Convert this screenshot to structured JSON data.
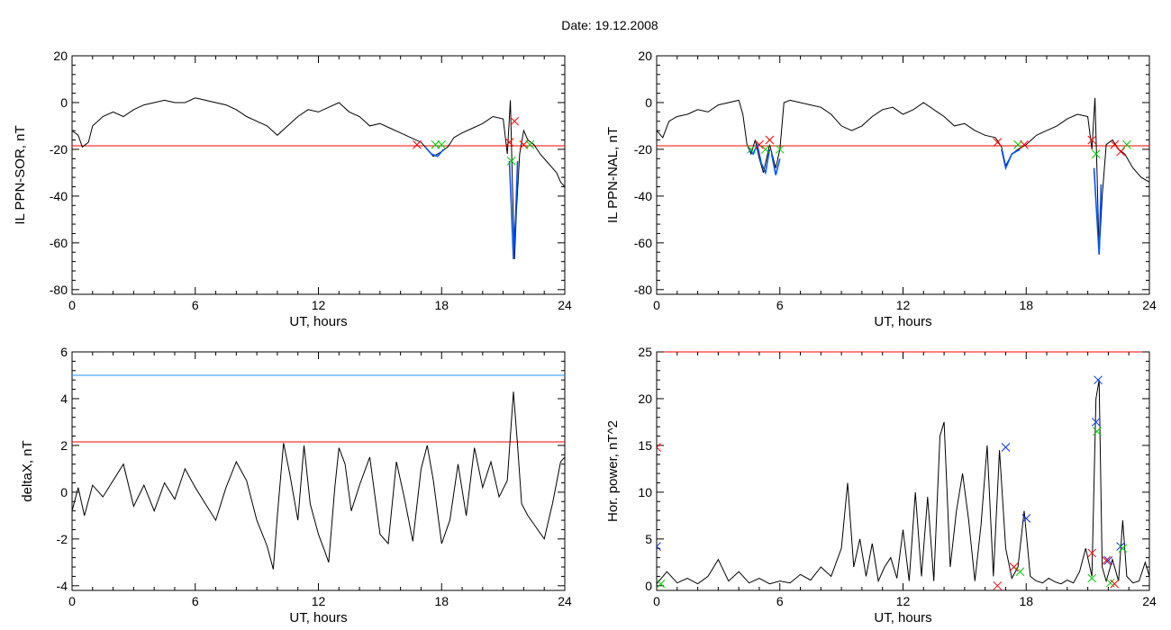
{
  "figure_title": "Date:  19.12.2008",
  "colors": {
    "trace": "#000000",
    "threshold_red": "#ff0000",
    "threshold_blue": "#1e90ff",
    "segment_blue": "#0055ff",
    "segment_dark": "#000080",
    "marker_red": "#ff0000",
    "marker_green": "#00cc00",
    "marker_blue": "#0033ff"
  },
  "chart_data": [
    {
      "id": "ppn-sor",
      "type": "line",
      "xlabel": "UT, hours",
      "ylabel": "IL PPN-SOR, nT",
      "xlim": [
        0,
        24
      ],
      "ylim": [
        -82,
        20
      ],
      "xticks": [
        0,
        6,
        12,
        18,
        24
      ],
      "yticks": [
        20,
        0,
        -20,
        -40,
        -60,
        -80
      ],
      "grid": false,
      "hlines": [
        {
          "y": -18.5,
          "color": "#ff0000"
        }
      ],
      "series": [
        {
          "color": "#000000",
          "x": [
            0,
            0.3,
            0.5,
            0.8,
            1.0,
            1.5,
            2.0,
            2.5,
            3.0,
            3.5,
            4.0,
            4.5,
            5.0,
            5.5,
            6.0,
            6.5,
            7.0,
            7.5,
            8.0,
            8.5,
            9.0,
            9.5,
            10.0,
            10.5,
            11.0,
            11.5,
            12.0,
            12.5,
            13.0,
            13.5,
            14.0,
            14.5,
            15.0,
            15.5,
            16.0,
            16.5,
            17.0,
            17.3,
            17.6,
            18.0,
            18.3,
            18.6,
            19.0,
            19.5,
            20.0,
            20.5,
            21.0,
            21.2,
            21.35,
            21.45,
            21.55,
            21.65,
            21.8,
            22.0,
            22.2,
            22.5,
            22.8,
            23.0,
            23.2,
            23.4,
            23.6,
            23.8,
            24.0
          ],
          "y": [
            -12,
            -14,
            -19,
            -17,
            -10,
            -6,
            -4,
            -6,
            -3,
            -1,
            0,
            1,
            0,
            0,
            2,
            1,
            0,
            -1,
            -3,
            -6,
            -8,
            -10,
            -14,
            -10,
            -6,
            -3,
            -4,
            -2,
            0,
            -4,
            -6,
            -10,
            -9,
            -11,
            -13,
            -15,
            -17,
            -20,
            -23,
            -21,
            -19,
            -15,
            -13,
            -11,
            -9,
            -6,
            -7,
            -22,
            1,
            -35,
            -67,
            -46,
            -22,
            -12,
            -16,
            -18,
            -22,
            -24,
            -26,
            -28,
            -30,
            -34,
            -36
          ]
        }
      ],
      "highlight_segments": [
        {
          "x": [
            17.2,
            17.5,
            17.8,
            18.1
          ],
          "y": [
            -19,
            -22,
            -23,
            -20
          ],
          "color": "#0055ff"
        },
        {
          "x": [
            21.3,
            21.4,
            21.5,
            21.6,
            21.7
          ],
          "y": [
            -25,
            -45,
            -67,
            -50,
            -25
          ],
          "color": "#0055ff"
        }
      ],
      "markers": [
        {
          "x": 16.8,
          "y": -18,
          "color": "#ff0000"
        },
        {
          "x": 17.7,
          "y": -18,
          "color": "#00cc00"
        },
        {
          "x": 18.0,
          "y": -18,
          "color": "#00cc00"
        },
        {
          "x": 21.3,
          "y": -17,
          "color": "#ff0000"
        },
        {
          "x": 21.55,
          "y": -8,
          "color": "#ff0000"
        },
        {
          "x": 21.4,
          "y": -25,
          "color": "#00cc00"
        },
        {
          "x": 22.0,
          "y": -18,
          "color": "#ff0000"
        },
        {
          "x": 22.3,
          "y": -18,
          "color": "#00cc00"
        }
      ]
    },
    {
      "id": "ppn-nal",
      "type": "line",
      "xlabel": "UT, hours",
      "ylabel": "IL PPN-NAL, nT",
      "xlim": [
        0,
        24
      ],
      "ylim": [
        -82,
        20
      ],
      "xticks": [
        0,
        6,
        12,
        18,
        24
      ],
      "yticks": [
        20,
        0,
        -20,
        -40,
        -60,
        -80
      ],
      "grid": false,
      "hlines": [
        {
          "y": -18.5,
          "color": "#ff0000"
        }
      ],
      "series": [
        {
          "color": "#000000",
          "x": [
            0,
            0.3,
            0.6,
            1.0,
            1.5,
            2.0,
            2.5,
            3.0,
            3.5,
            4.0,
            4.2,
            4.4,
            4.6,
            4.8,
            5.0,
            5.2,
            5.5,
            5.8,
            6.0,
            6.2,
            6.5,
            7.0,
            7.5,
            8.0,
            8.5,
            9.0,
            9.5,
            10.0,
            10.5,
            11.0,
            11.5,
            12.0,
            12.5,
            13.0,
            13.5,
            14.0,
            14.5,
            15.0,
            15.5,
            16.0,
            16.5,
            16.8,
            17.0,
            17.3,
            17.6,
            18.0,
            18.5,
            19.0,
            19.5,
            20.0,
            20.5,
            21.0,
            21.2,
            21.35,
            21.45,
            21.55,
            21.7,
            21.9,
            22.2,
            22.5,
            22.8,
            23.2,
            23.6,
            24.0
          ],
          "y": [
            -12,
            -15,
            -8,
            -6,
            -5,
            -3,
            -4,
            -1,
            0,
            1,
            -5,
            -18,
            -22,
            -16,
            -24,
            -30,
            -18,
            -28,
            -20,
            0,
            1,
            0,
            -1,
            -2,
            -5,
            -10,
            -12,
            -10,
            -6,
            -3,
            -2,
            -5,
            -3,
            0,
            -3,
            -6,
            -10,
            -9,
            -12,
            -14,
            -15,
            -19,
            -27,
            -22,
            -20,
            -18,
            -14,
            -12,
            -10,
            -7,
            -5,
            -6,
            -20,
            2,
            -30,
            -65,
            -40,
            -18,
            -16,
            -20,
            -22,
            -28,
            -32,
            -34
          ]
        }
      ],
      "highlight_segments": [
        {
          "x": [
            4.5,
            4.7,
            4.9,
            5.1,
            5.3,
            5.5
          ],
          "y": [
            -20,
            -22,
            -18,
            -26,
            -30,
            -20
          ],
          "color": "#0055ff"
        },
        {
          "x": [
            5.6,
            5.8,
            6.0
          ],
          "y": [
            -22,
            -31,
            -24
          ],
          "color": "#0055ff"
        },
        {
          "x": [
            16.8,
            17.0,
            17.3,
            17.7
          ],
          "y": [
            -20,
            -28,
            -22,
            -20
          ],
          "color": "#0055ff"
        },
        {
          "x": [
            21.3,
            21.45,
            21.55,
            21.65
          ],
          "y": [
            -28,
            -50,
            -65,
            -35
          ],
          "color": "#0055ff"
        }
      ],
      "markers": [
        {
          "x": 4.6,
          "y": -20,
          "color": "#00cc00"
        },
        {
          "x": 5.0,
          "y": -18,
          "color": "#ff0000"
        },
        {
          "x": 5.3,
          "y": -20,
          "color": "#00cc00"
        },
        {
          "x": 5.5,
          "y": -16,
          "color": "#ff0000"
        },
        {
          "x": 6.0,
          "y": -20,
          "color": "#00cc00"
        },
        {
          "x": 16.6,
          "y": -17,
          "color": "#ff0000"
        },
        {
          "x": 17.6,
          "y": -18,
          "color": "#00cc00"
        },
        {
          "x": 17.9,
          "y": -18,
          "color": "#ff0000"
        },
        {
          "x": 21.2,
          "y": -16,
          "color": "#ff0000"
        },
        {
          "x": 21.4,
          "y": -22,
          "color": "#00cc00"
        },
        {
          "x": 22.3,
          "y": -18,
          "color": "#ff0000"
        },
        {
          "x": 22.6,
          "y": -21,
          "color": "#ff0000"
        },
        {
          "x": 22.9,
          "y": -18,
          "color": "#00cc00"
        }
      ]
    },
    {
      "id": "deltax",
      "type": "line",
      "xlabel": "UT, hours",
      "ylabel": "deltaX, nT",
      "xlim": [
        0,
        24
      ],
      "ylim": [
        -4.2,
        6
      ],
      "xticks": [
        0,
        6,
        12,
        18,
        24
      ],
      "yticks": [
        6,
        4,
        2,
        0,
        -2,
        -4
      ],
      "grid": false,
      "hlines": [
        {
          "y": 5.0,
          "color": "#1e90ff"
        },
        {
          "y": 2.15,
          "color": "#ff0000"
        }
      ],
      "series": [
        {
          "color": "#000000",
          "x": [
            0,
            0.3,
            0.6,
            1.0,
            1.5,
            2.0,
            2.5,
            3.0,
            3.5,
            4.0,
            4.5,
            5.0,
            5.5,
            6.0,
            6.5,
            7.0,
            7.5,
            8.0,
            8.5,
            9.0,
            9.5,
            9.8,
            10.0,
            10.3,
            10.6,
            11.0,
            11.3,
            11.6,
            12.0,
            12.3,
            12.5,
            12.8,
            13.0,
            13.3,
            13.6,
            14.0,
            14.5,
            15.0,
            15.4,
            15.8,
            16.2,
            16.6,
            17.0,
            17.3,
            17.6,
            18.0,
            18.4,
            18.8,
            19.2,
            19.6,
            20.0,
            20.4,
            20.8,
            21.2,
            21.5,
            21.7,
            21.9,
            22.2,
            22.6,
            23.0,
            23.4,
            23.8,
            24.0
          ],
          "y": [
            -0.8,
            0.2,
            -1.0,
            0.3,
            -0.2,
            0.5,
            1.2,
            -0.6,
            0.3,
            -0.8,
            0.4,
            -0.3,
            1.0,
            0.2,
            -0.5,
            -1.2,
            0.2,
            1.3,
            0.5,
            -1.2,
            -2.3,
            -3.3,
            -1.0,
            2.1,
            0.8,
            -1.2,
            2.0,
            -0.5,
            -1.8,
            -2.5,
            -3.0,
            0.2,
            1.9,
            1.2,
            -0.8,
            0.3,
            1.5,
            -1.8,
            -2.2,
            1.3,
            -0.3,
            -2.1,
            1.0,
            2.0,
            0.5,
            -2.2,
            -1.2,
            1.2,
            -1.0,
            1.9,
            0.2,
            1.3,
            -0.2,
            0.5,
            4.3,
            2.0,
            -0.5,
            -1.0,
            -1.5,
            -2.0,
            -0.5,
            1.3,
            1.5
          ]
        }
      ],
      "highlight_segments": [],
      "markers": []
    },
    {
      "id": "hor-power",
      "type": "line",
      "xlabel": "UT, hours",
      "ylabel": "Hor. power, nT^2",
      "xlim": [
        0,
        24
      ],
      "ylim": [
        -0.5,
        25
      ],
      "xticks": [
        0,
        6,
        12,
        18,
        24
      ],
      "yticks": [
        25,
        20,
        15,
        10,
        5,
        0
      ],
      "grid": false,
      "hlines": [
        {
          "y": 25,
          "color": "#ff0000"
        }
      ],
      "series": [
        {
          "color": "#000000",
          "x": [
            0,
            0.5,
            1.0,
            1.5,
            2.0,
            2.5,
            3.0,
            3.5,
            4.0,
            4.5,
            5.0,
            5.5,
            6.0,
            6.5,
            7.0,
            7.5,
            8.0,
            8.5,
            9.0,
            9.3,
            9.6,
            9.9,
            10.2,
            10.5,
            10.8,
            11.1,
            11.4,
            11.7,
            12.0,
            12.3,
            12.6,
            12.9,
            13.2,
            13.5,
            13.8,
            14.0,
            14.3,
            14.6,
            14.9,
            15.2,
            15.5,
            15.8,
            16.1,
            16.4,
            16.7,
            17.0,
            17.3,
            17.6,
            17.9,
            18.2,
            18.5,
            18.8,
            19.1,
            19.4,
            19.7,
            20.0,
            20.3,
            20.6,
            20.9,
            21.2,
            21.4,
            21.55,
            21.7,
            21.9,
            22.2,
            22.5,
            22.7,
            22.9,
            23.2,
            23.5,
            23.8,
            24.0
          ],
          "y": [
            0.2,
            1.5,
            0.3,
            0.8,
            0.2,
            1.0,
            2.8,
            0.5,
            1.5,
            0.3,
            0.8,
            0.2,
            0.5,
            0.3,
            1.2,
            0.6,
            2.0,
            1.0,
            4.0,
            11.0,
            2.0,
            5.0,
            1.0,
            4.5,
            0.5,
            2.0,
            3.0,
            0.8,
            6.0,
            0.5,
            10.0,
            1.0,
            9.5,
            0.5,
            16.0,
            17.5,
            2.0,
            8.0,
            12.0,
            7.0,
            0.5,
            6.5,
            15.0,
            1.0,
            14.5,
            4.0,
            0.8,
            2.0,
            8.0,
            1.0,
            0.5,
            0.3,
            0.8,
            0.4,
            0.2,
            0.6,
            0.3,
            1.5,
            4.0,
            1.0,
            20.0,
            22.0,
            2.0,
            0.5,
            2.8,
            0.5,
            7.0,
            1.0,
            0.3,
            0.5,
            2.5,
            1.0
          ]
        }
      ],
      "highlight_segments": [],
      "markers": [
        {
          "x": 0.0,
          "y": 14.8,
          "color": "#ff0000"
        },
        {
          "x": 0.0,
          "y": 4.2,
          "color": "#0033ff"
        },
        {
          "x": 0.2,
          "y": 0.2,
          "color": "#00cc00"
        },
        {
          "x": 16.6,
          "y": 0.0,
          "color": "#ff0000"
        },
        {
          "x": 17.0,
          "y": 14.8,
          "color": "#0033ff"
        },
        {
          "x": 17.4,
          "y": 2.0,
          "color": "#ff0000"
        },
        {
          "x": 17.7,
          "y": 1.5,
          "color": "#00cc00"
        },
        {
          "x": 18.0,
          "y": 7.2,
          "color": "#0033ff"
        },
        {
          "x": 21.2,
          "y": 3.5,
          "color": "#ff0000"
        },
        {
          "x": 21.4,
          "y": 17.5,
          "color": "#0033ff"
        },
        {
          "x": 21.45,
          "y": 16.5,
          "color": "#00cc00"
        },
        {
          "x": 21.5,
          "y": 22.0,
          "color": "#0033ff"
        },
        {
          "x": 21.2,
          "y": 0.8,
          "color": "#00cc00"
        },
        {
          "x": 21.9,
          "y": 2.7,
          "color": "#ff0000"
        },
        {
          "x": 22.0,
          "y": 2.7,
          "color": "#0033ff"
        },
        {
          "x": 22.1,
          "y": 0.3,
          "color": "#00cc00"
        },
        {
          "x": 22.3,
          "y": 0.2,
          "color": "#ff0000"
        },
        {
          "x": 22.6,
          "y": 4.2,
          "color": "#0033ff"
        },
        {
          "x": 22.7,
          "y": 4.0,
          "color": "#00cc00"
        }
      ]
    }
  ]
}
